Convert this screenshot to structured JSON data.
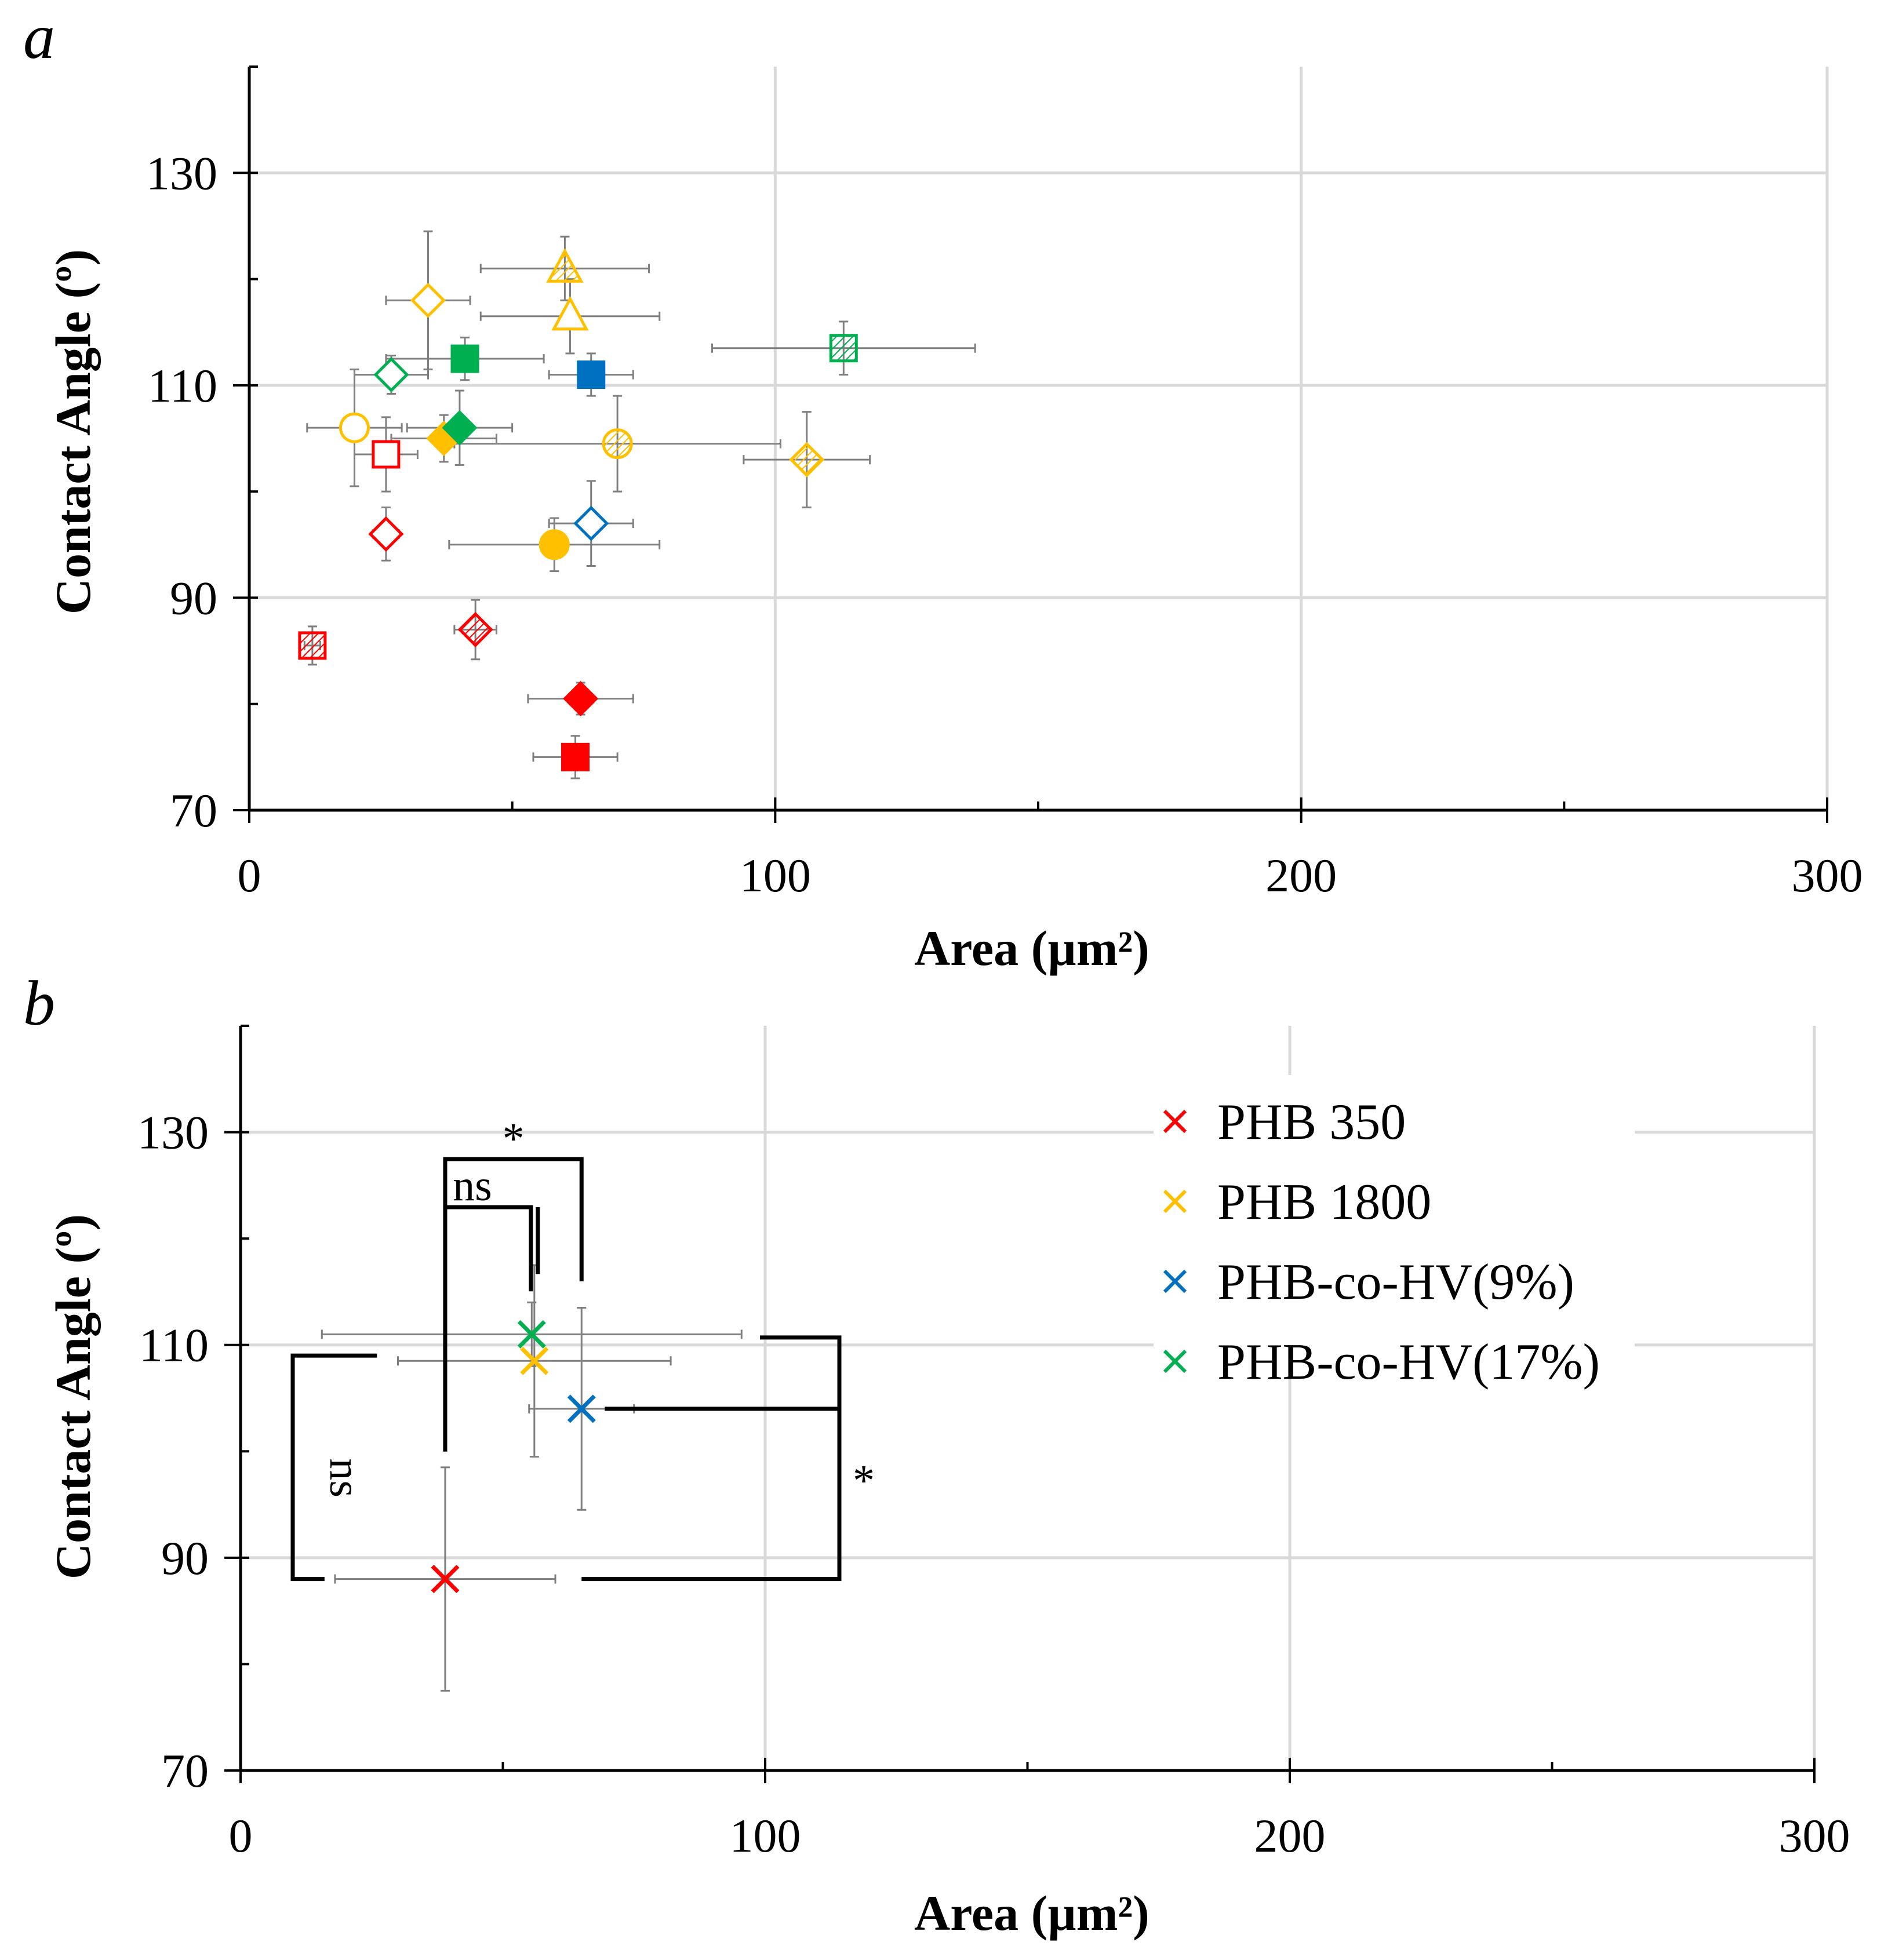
{
  "chart_data": [
    {
      "panel": "a",
      "type": "scatter",
      "xlabel": "Area (µm²)",
      "ylabel": "Contact Angle (º)",
      "xlim": [
        0,
        300
      ],
      "ylim": [
        70,
        140
      ],
      "xticks": [
        "0",
        "100",
        "200",
        "300"
      ],
      "yticks": [
        "70",
        "90",
        "110",
        "130"
      ],
      "grid": true,
      "points": [
        {
          "x": 12,
          "y": 85.5,
          "xerr": 1.5,
          "yerr": 1.8,
          "color": "#FF0000",
          "marker": "square",
          "fill": "hatched"
        },
        {
          "x": 26,
          "y": 96,
          "xerr": 2.5,
          "yerr": 2.5,
          "color": "#FF0000",
          "marker": "diamond",
          "fill": "open"
        },
        {
          "x": 26,
          "y": 103.5,
          "xerr": 6,
          "yerr": 3.5,
          "color": "#FF0000",
          "marker": "square",
          "fill": "open"
        },
        {
          "x": 43,
          "y": 87,
          "xerr": 4,
          "yerr": 2.8,
          "color": "#FF0000",
          "marker": "diamond",
          "fill": "hatched"
        },
        {
          "x": 62,
          "y": 75,
          "xerr": 8,
          "yerr": 2,
          "color": "#FF0000",
          "marker": "square",
          "fill": "solid"
        },
        {
          "x": 63,
          "y": 80.5,
          "xerr": 10,
          "yerr": 1.5,
          "color": "#FF0000",
          "marker": "diamond",
          "fill": "solid"
        },
        {
          "x": 20,
          "y": 106,
          "xerr": 9,
          "yerr": 5.5,
          "color": "#FFC000",
          "marker": "circle",
          "fill": "open"
        },
        {
          "x": 34,
          "y": 118,
          "xerr": 8,
          "yerr": 6.5,
          "color": "#FFC000",
          "marker": "diamond",
          "fill": "open"
        },
        {
          "x": 37,
          "y": 105,
          "xerr": 10,
          "yerr": 2.2,
          "color": "#FFC000",
          "marker": "diamond",
          "fill": "solid"
        },
        {
          "x": 58,
          "y": 95,
          "xerr": 20,
          "yerr": 2.5,
          "color": "#FFC000",
          "marker": "circle",
          "fill": "solid"
        },
        {
          "x": 60,
          "y": 121,
          "xerr": 16,
          "yerr": 3,
          "color": "#FFC000",
          "marker": "triangle",
          "fill": "hatched"
        },
        {
          "x": 61,
          "y": 116.5,
          "xerr": 17,
          "yerr": 3.5,
          "color": "#FFC000",
          "marker": "triangle",
          "fill": "open"
        },
        {
          "x": 70,
          "y": 104.5,
          "xerr": 31,
          "yerr": 4.5,
          "color": "#FFC000",
          "marker": "circle",
          "fill": "hatched"
        },
        {
          "x": 106,
          "y": 103,
          "xerr": 12,
          "yerr": 4.5,
          "color": "#FFC000",
          "marker": "diamond",
          "fill": "hatched"
        },
        {
          "x": 65,
          "y": 111,
          "xerr": 8,
          "yerr": 2,
          "color": "#0070C0",
          "marker": "square",
          "fill": "solid"
        },
        {
          "x": 65,
          "y": 97,
          "xerr": 8,
          "yerr": 4,
          "color": "#0070C0",
          "marker": "diamond",
          "fill": "open"
        },
        {
          "x": 27,
          "y": 111,
          "xerr": 7,
          "yerr": 1.8,
          "color": "#00B050",
          "marker": "diamond",
          "fill": "open"
        },
        {
          "x": 40,
          "y": 106,
          "xerr": 10,
          "yerr": 3.5,
          "color": "#00B050",
          "marker": "diamond",
          "fill": "solid"
        },
        {
          "x": 41,
          "y": 112.5,
          "xerr": 15,
          "yerr": 2,
          "color": "#00B050",
          "marker": "square",
          "fill": "solid"
        },
        {
          "x": 113,
          "y": 113.5,
          "xerr": 25,
          "yerr": 2.5,
          "color": "#00B050",
          "marker": "square",
          "fill": "hatched"
        }
      ]
    },
    {
      "panel": "b",
      "type": "scatter",
      "xlabel": "Area (µm²)",
      "ylabel": "Contact Angle (º)",
      "xlim": [
        0,
        300
      ],
      "ylim": [
        70,
        140
      ],
      "xticks": [
        "0",
        "100",
        "200",
        "300"
      ],
      "yticks": [
        "70",
        "90",
        "110",
        "130"
      ],
      "grid": true,
      "series": [
        {
          "name": "PHB 350",
          "x": 39,
          "y": 88,
          "xerr": 21,
          "yerr": 10.5,
          "color": "#FF0000"
        },
        {
          "name": "PHB 1800",
          "x": 56,
          "y": 108.5,
          "xerr": 26,
          "yerr": 9,
          "color": "#FFC000"
        },
        {
          "name": "PHB-co-HV(9%)",
          "x": 65,
          "y": 104,
          "xerr": 10,
          "yerr": 9.5,
          "color": "#0070C0"
        },
        {
          "name": "PHB-co-HV(17%)",
          "x": 55.5,
          "y": 111,
          "xerr": 40,
          "yerr": 3,
          "color": "#00B050"
        }
      ],
      "annotations": [
        {
          "text": "*",
          "from": "PHB 350",
          "to": "PHB-co-HV(9%)"
        },
        {
          "text": "ns",
          "from": "PHB 350",
          "to": "PHB 1800"
        },
        {
          "text": "ns",
          "from": "PHB 350",
          "to": "PHB-co-HV(17%)"
        },
        {
          "text": "*",
          "from": "PHB 350",
          "to": "PHB-co-HV(9%)"
        }
      ]
    }
  ],
  "labels": {
    "panel_a": "a",
    "panel_b": "b"
  }
}
